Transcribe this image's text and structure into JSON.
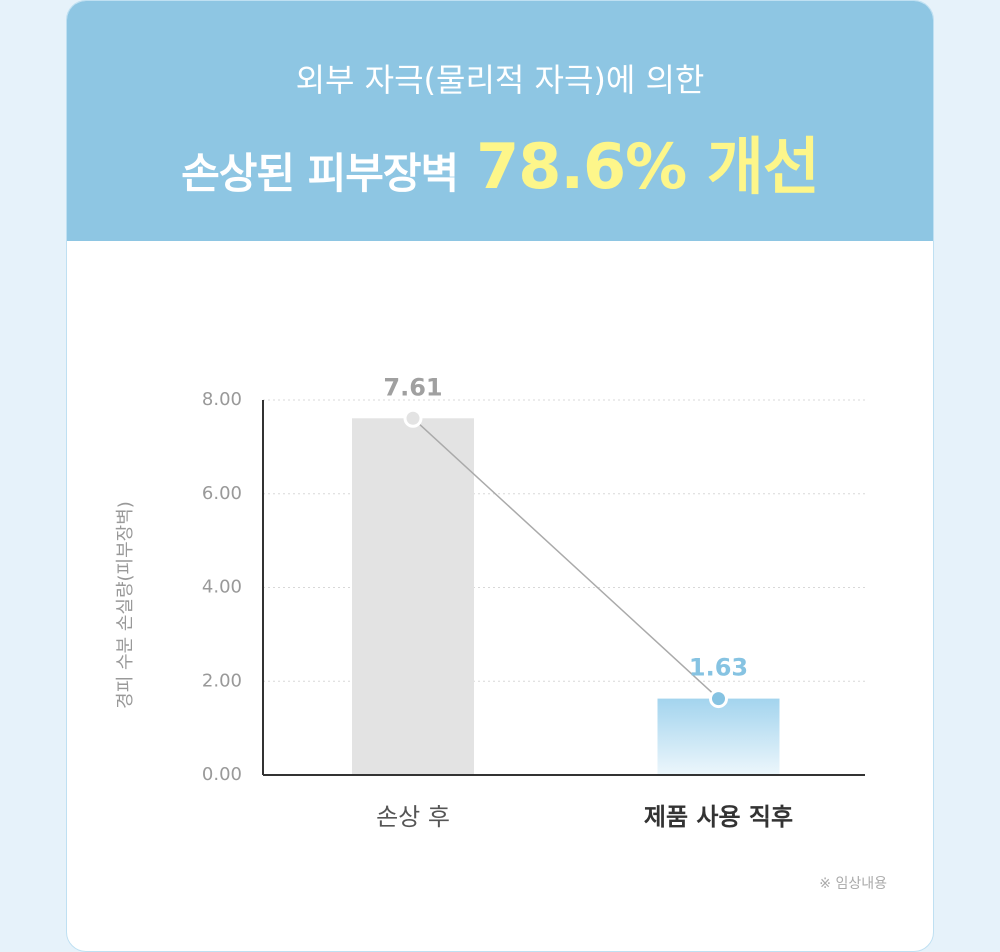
{
  "header": {
    "line1": "외부 자극(물리적 자극)에 의한",
    "line2": "손상된 피부장벽",
    "highlight": "78.6% 개선"
  },
  "chart_data": {
    "type": "bar",
    "ylabel": "경피 수분 손실량(피부장벽)",
    "categories": [
      "손상 후",
      "제품 사용 직후"
    ],
    "values": [
      7.61,
      1.63
    ],
    "colors": [
      "#e3e3e3",
      "#a3d4ee"
    ],
    "label_colors": [
      "#a0a0a0",
      "#86c3e2"
    ],
    "ylim": [
      0,
      8
    ],
    "yticks": [
      {
        "value": 0,
        "label": "0.00"
      },
      {
        "value": 2,
        "label": "2.00"
      },
      {
        "value": 4,
        "label": "4.00"
      },
      {
        "value": 6,
        "label": "6.00"
      },
      {
        "value": 8,
        "label": "8.00"
      }
    ],
    "grid": true,
    "note": "※ 임상내용"
  }
}
